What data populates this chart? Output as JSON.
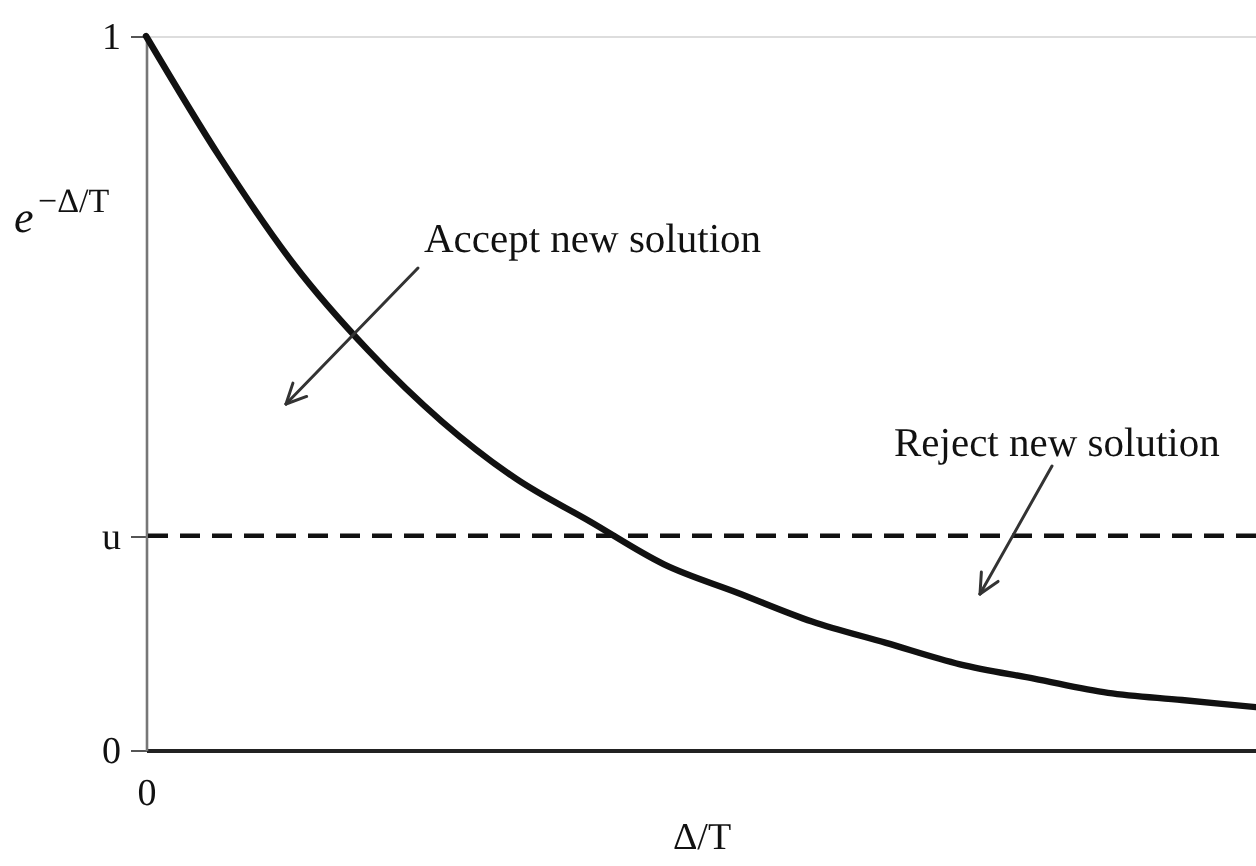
{
  "chart_data": {
    "type": "line",
    "xlabel": "Δ/T",
    "ylabel": "e$^{−Δ/T}$",
    "categories": [
      "0",
      null,
      null,
      null,
      null,
      null,
      null,
      null,
      null,
      null,
      null,
      null,
      null,
      null,
      null,
      null
    ],
    "series": [
      {
        "color": "#111111",
        "values": [
          1.0,
          0.83,
          0.68,
          0.56,
          0.46,
          0.38,
          0.32,
          0.26,
          0.22,
          0.18,
          0.15,
          0.12,
          0.1,
          0.08,
          0.07,
          0.06
        ]
      }
    ],
    "ylim": [
      0,
      1
    ],
    "yticks": [
      0,
      {
        "value": 0.3,
        "label": "u"
      },
      1
    ],
    "ref_lines": [
      {
        "axis": "y",
        "value": 0.3,
        "color": "#111111",
        "line_style": "dashed"
      }
    ],
    "annotations": [
      "Accept new solution",
      "Reject new solution"
    ],
    "grid": false,
    "marker": "none",
    "line_style": "solid"
  }
}
